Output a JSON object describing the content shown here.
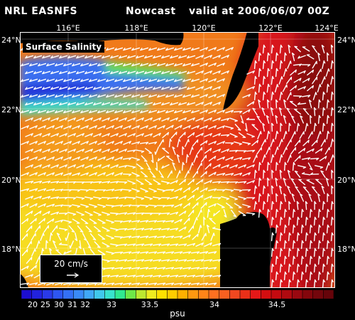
{
  "header": {
    "model": "NRL EASNFS",
    "run_type": "Nowcast",
    "valid": "valid at 2006/06/07 00Z"
  },
  "map": {
    "title": "Surface Salinity",
    "lon_labels": [
      "116°E",
      "118°E",
      "120°E",
      "122°E",
      "124°E"
    ],
    "lat_labels": [
      "24°N",
      "22°N",
      "20°N",
      "18°N"
    ],
    "lon_range": [
      114.3,
      124.0
    ],
    "lat_range": [
      16.3,
      24.0
    ],
    "reference_vector": {
      "label": "20 cm/s",
      "speed_cm_s": 20
    },
    "land_color": "#000000",
    "vector_color": "#ffffff"
  },
  "colorbar": {
    "unit": "psu",
    "tick_labels": [
      "20",
      "25",
      "30",
      "31",
      "32",
      "33",
      "33.5",
      "34",
      "34.5"
    ],
    "colors": [
      "#1c0ed0",
      "#2222de",
      "#2a3ae8",
      "#2e56f2",
      "#3470f6",
      "#3a8af8",
      "#40a8f8",
      "#40c8ec",
      "#38e2cc",
      "#30e890",
      "#6ee848",
      "#bce830",
      "#eeec20",
      "#ffe000",
      "#ffcc00",
      "#ffb000",
      "#ff9810",
      "#ff8418",
      "#ff7020",
      "#f86020",
      "#f04820",
      "#ea3018",
      "#e41818",
      "#d40e10",
      "#c40a10",
      "#b00a10",
      "#9a0810",
      "#84060c",
      "#74060c",
      "#66040a"
    ]
  }
}
